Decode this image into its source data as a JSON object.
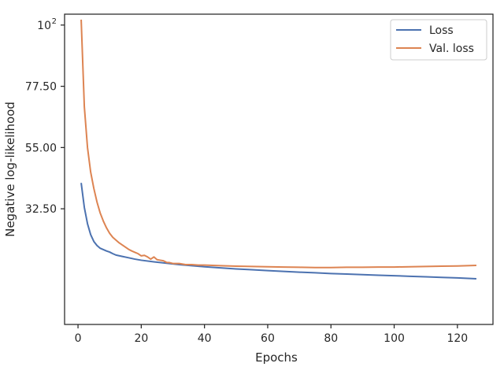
{
  "chart_data": {
    "type": "line",
    "title": "",
    "xlabel": "Epochs",
    "ylabel": "Negative log-likelihood",
    "xlim": [
      -4.25,
      131.25
    ],
    "ylim": [
      -10,
      104
    ],
    "x_ticks": [
      0,
      20,
      40,
      60,
      80,
      100,
      120
    ],
    "y_ticks": [
      {
        "value": 32.5,
        "label": "32.50"
      },
      {
        "value": 55.0,
        "label": "55.00"
      },
      {
        "value": 77.5,
        "label": "77.50"
      },
      {
        "value": 100.0,
        "label": "10",
        "sup": "2"
      }
    ],
    "grid": false,
    "legend": {
      "position": "top-right"
    },
    "colors": {
      "loss": "#4c72b0",
      "val_loss": "#dd8452"
    },
    "series": [
      {
        "name": "Loss",
        "color": "#4c72b0",
        "x": [
          1,
          2,
          3,
          4,
          5,
          6,
          7,
          8,
          9,
          10,
          11,
          12,
          14,
          16,
          18,
          20,
          24,
          28,
          32,
          36,
          40,
          45,
          50,
          55,
          60,
          65,
          70,
          75,
          80,
          85,
          90,
          95,
          100,
          105,
          110,
          115,
          120,
          126
        ],
        "y": [
          42,
          33,
          27,
          23,
          20.5,
          19,
          18,
          17.5,
          17,
          16.6,
          16,
          15.5,
          15,
          14.5,
          14,
          13.6,
          13,
          12.5,
          12,
          11.6,
          11.2,
          10.8,
          10.4,
          10.1,
          9.8,
          9.5,
          9.2,
          9,
          8.7,
          8.5,
          8.3,
          8.1,
          7.9,
          7.7,
          7.5,
          7.3,
          7.1,
          6.8
        ]
      },
      {
        "name": "Val. loss",
        "color": "#dd8452",
        "x": [
          1,
          2,
          3,
          4,
          5,
          6,
          7,
          8,
          9,
          10,
          11,
          12,
          13,
          14,
          15,
          16,
          17,
          18,
          19,
          20,
          21,
          22,
          23,
          24,
          25,
          26,
          27,
          28,
          29,
          30,
          32,
          34,
          36,
          38,
          40,
          45,
          50,
          55,
          60,
          65,
          70,
          75,
          80,
          85,
          90,
          95,
          100,
          105,
          110,
          115,
          120,
          126
        ],
        "y": [
          102,
          70,
          55,
          46,
          40,
          35,
          31,
          28,
          25.5,
          23.5,
          22,
          21,
          20,
          19.2,
          18.4,
          17.6,
          17,
          16.5,
          16,
          15.2,
          15.4,
          14.8,
          14,
          14.8,
          13.8,
          13.6,
          13.4,
          12.8,
          12.7,
          12.4,
          12.4,
          12,
          12,
          11.8,
          11.8,
          11.6,
          11.4,
          11.3,
          11.2,
          11.1,
          11,
          10.9,
          10.9,
          11,
          11,
          11.1,
          11.1,
          11.2,
          11.3,
          11.4,
          11.5,
          11.7
        ]
      }
    ]
  }
}
